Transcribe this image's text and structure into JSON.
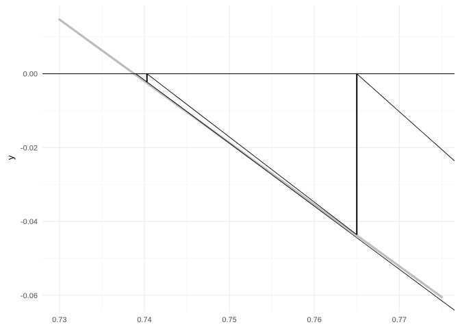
{
  "chart_data": {
    "type": "line",
    "title": "",
    "xlabel": "",
    "ylabel": "y",
    "xlim": [
      0.728,
      0.7765
    ],
    "ylim": [
      -0.0645,
      0.0185
    ],
    "x_ticks": [
      0.73,
      0.74,
      0.75,
      0.76,
      0.77
    ],
    "x_tick_labels": [
      "0.73",
      "0.74",
      "0.75",
      "0.76",
      "0.77"
    ],
    "y_ticks": [
      0.0,
      -0.02,
      -0.04,
      -0.06
    ],
    "y_tick_labels": [
      "0.00",
      "-0.02",
      "-0.04",
      "-0.06"
    ],
    "grid": true,
    "legend": "none",
    "series": [
      {
        "role": "function-curve",
        "color": "#bdbdbd",
        "points": [
          [
            0.73,
            0.0147
          ],
          [
            0.775,
            -0.0605
          ]
        ]
      },
      {
        "role": "zero-line",
        "color": "#000000",
        "points": [
          [
            0.728,
            0.0
          ],
          [
            0.7765,
            0.0
          ]
        ]
      },
      {
        "role": "secant-lines",
        "color": "#000000",
        "segments": [
          [
            [
              0.739,
              0.0
            ],
            [
              0.7767,
              -0.0644
            ]
          ],
          [
            [
              0.7403,
              0.0
            ],
            [
              0.765,
              -0.0436
            ]
          ],
          [
            [
              0.765,
              0.0
            ],
            [
              0.7765,
              -0.0236
            ]
          ]
        ]
      },
      {
        "role": "vertical-steps",
        "color": "#000000",
        "segments": [
          [
            [
              0.7403,
              0.0
            ],
            [
              0.7403,
              -0.0022
            ]
          ],
          [
            [
              0.765,
              0.0
            ],
            [
              0.765,
              -0.0436
            ]
          ]
        ]
      }
    ]
  }
}
